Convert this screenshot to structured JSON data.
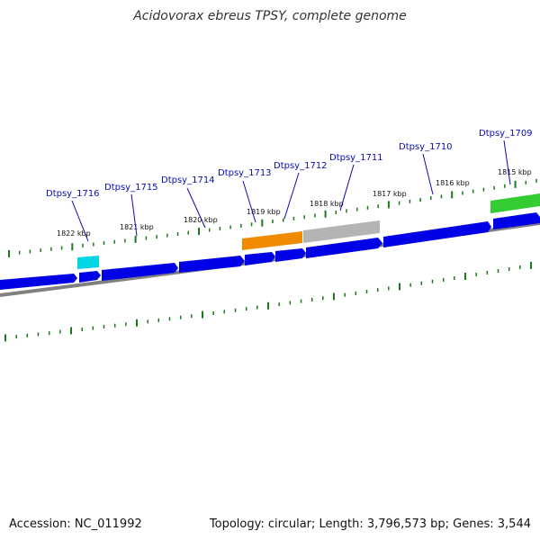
{
  "title": "Acidovorax ebreus TPSY, complete genome",
  "footer": {
    "accession": "Accession: NC_011992",
    "topology": "Topology: circular; Length: 3,796,573 bp; Genes: 3,544"
  },
  "colors": {
    "cds": "#0000e6",
    "trna": "#00d7e6",
    "rrna": "#f08a00",
    "misc": "#b4b4b4",
    "rna_green": "#33cc33",
    "backbone": "#808080",
    "ticks": "#1a7a1a",
    "label": "#0b0bb4"
  },
  "kbp_labels": [
    "1822 kbp",
    "1821 kbp",
    "1820 kbp",
    "1819 kbp",
    "1818 kbp",
    "1817 kbp",
    "1816 kbp",
    "1815 kbp"
  ],
  "genes": [
    {
      "name": "Dtpsy_1716"
    },
    {
      "name": "Dtpsy_1715"
    },
    {
      "name": "Dtpsy_1714"
    },
    {
      "name": "Dtpsy_1713"
    },
    {
      "name": "Dtpsy_1712"
    },
    {
      "name": "Dtpsy_1711"
    },
    {
      "name": "Dtpsy_1710"
    },
    {
      "name": "Dtpsy_1709"
    }
  ]
}
